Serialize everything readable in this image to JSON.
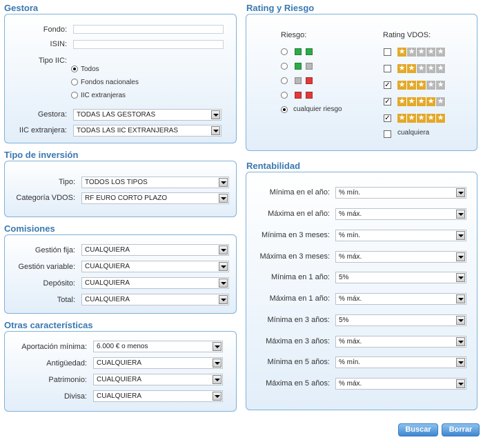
{
  "gestora": {
    "title": "Gestora",
    "fondo_label": "Fondo:",
    "fondo_value": "",
    "isin_label": "ISIN:",
    "isin_value": "",
    "tipo_iic_label": "Tipo IIC:",
    "tipo_options": [
      "Todos",
      "Fondos nacionales",
      "IIC extranjeras"
    ],
    "tipo_selected": "Todos",
    "gestora_label": "Gestora:",
    "gestora_value": "TODAS LAS GESTORAS",
    "iic_ext_label": "IIC extranjera:",
    "iic_ext_value": "TODAS LAS IIC EXTRANJERAS"
  },
  "tipo_inversion": {
    "title": "Tipo de inversión",
    "tipo_label": "Tipo:",
    "tipo_value": "TODOS LOS TIPOS",
    "categoria_label": "Categoría VDOS:",
    "categoria_value": "RF EURO CORTO PLAZO"
  },
  "comisiones": {
    "title": "Comisiones",
    "rows": [
      {
        "label": "Gestión fija:",
        "value": "CUALQUIERA"
      },
      {
        "label": "Gestión variable:",
        "value": "CUALQUIERA"
      },
      {
        "label": "Depósito:",
        "value": "CUALQUIERA"
      },
      {
        "label": "Total:",
        "value": "CUALQUIERA"
      }
    ]
  },
  "otras": {
    "title": "Otras características",
    "rows": [
      {
        "label": "Aportación mínima:",
        "value": "6.000 € o menos"
      },
      {
        "label": "Antigüedad:",
        "value": "CUALQUIERA"
      },
      {
        "label": "Patrimonio:",
        "value": "CUALQUIERA"
      },
      {
        "label": "Divisa:",
        "value": "CUALQUIERA"
      }
    ]
  },
  "rating": {
    "title": "Rating y Riesgo",
    "riesgo_label": "Riesgo:",
    "rating_label": "Rating VDOS:",
    "riesgo_options": [
      {
        "colors": [
          "#2eaa4a",
          "#2eaa4a"
        ]
      },
      {
        "colors": [
          "#2eaa4a",
          "#b8b8b8"
        ]
      },
      {
        "colors": [
          "#b8b8b8",
          "#e03a3a"
        ]
      },
      {
        "colors": [
          "#e03a3a",
          "#e03a3a"
        ]
      }
    ],
    "riesgo_any_label": "cualquier riesgo",
    "riesgo_selected": "cualquier riesgo",
    "rating_options": [
      {
        "stars": 1,
        "checked": false
      },
      {
        "stars": 2,
        "checked": false
      },
      {
        "stars": 3,
        "checked": true
      },
      {
        "stars": 4,
        "checked": true
      },
      {
        "stars": 5,
        "checked": true
      }
    ],
    "rating_any_label": "cualquiera",
    "rating_any_checked": false
  },
  "rentabilidad": {
    "title": "Rentabilidad",
    "rows": [
      {
        "label": "Mínima en el año:",
        "value": "% mín."
      },
      {
        "label": "Máxima en el año:",
        "value": "% máx."
      },
      {
        "label": "Mínima en 3 meses:",
        "value": "% mín."
      },
      {
        "label": "Máxima en 3 meses:",
        "value": "% máx."
      },
      {
        "label": "Mínima en 1 año:",
        "value": "5%"
      },
      {
        "label": "Máxima en 1 año:",
        "value": "% máx."
      },
      {
        "label": "Mínima en 3 años:",
        "value": "5%"
      },
      {
        "label": "Máxima en 3 años:",
        "value": "% máx."
      },
      {
        "label": "Mínima en 5 años:",
        "value": "% mín."
      },
      {
        "label": "Máxima en 5 años:",
        "value": "% máx."
      }
    ]
  },
  "buttons": {
    "buscar": "Buscar",
    "borrar": "Borrar"
  }
}
